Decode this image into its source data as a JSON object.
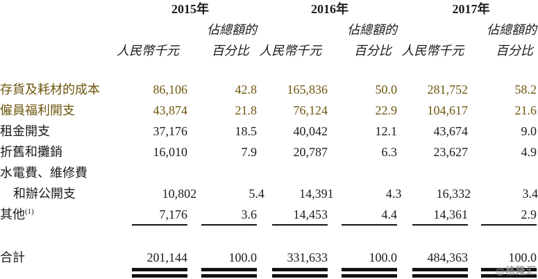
{
  "colors": {
    "ink": "#1b1b1b",
    "highlight_text": "#6e560e",
    "rule": "#111111",
    "watermark": "#8f9296"
  },
  "header": {
    "years": [
      "2015年",
      "2016年",
      "2017年"
    ],
    "pct_label_top": "佔總額的",
    "amount_label": "人民幣千元",
    "pct_label_bottom": "百分比"
  },
  "table": {
    "rows": [
      {
        "label": "存貨及耗材的成本",
        "values": [
          "86,106",
          "42.8",
          "165,836",
          "50.0",
          "281,752",
          "58.2"
        ]
      },
      {
        "label": "僱員福利開支",
        "values": [
          "43,874",
          "21.8",
          "76,124",
          "22.9",
          "104,617",
          "21.6"
        ]
      },
      {
        "label": "租金開支",
        "values": [
          "37,176",
          "18.5",
          "40,042",
          "12.1",
          "43,674",
          "9.0"
        ]
      },
      {
        "label": "折舊和攤銷",
        "values": [
          "16,010",
          "7.9",
          "20,787",
          "6.3",
          "23,627",
          "4.9"
        ]
      },
      {
        "label": "水電費、維修費",
        "values": [
          "",
          "",
          "",
          "",
          "",
          ""
        ]
      },
      {
        "label": "和辦公開支",
        "values": [
          "10,802",
          "5.4",
          "14,391",
          "4.3",
          "16,332",
          "3.4"
        ]
      },
      {
        "label": "其他",
        "sup": "(1)",
        "values": [
          "7,176",
          "3.6",
          "14,453",
          "4.4",
          "14,361",
          "2.9"
        ]
      }
    ],
    "total": {
      "label": "合計",
      "values": [
        "201,144",
        "100.0",
        "331,633",
        "100.0",
        "484,363",
        "100.0"
      ]
    }
  },
  "watermark": "@格隆汇"
}
